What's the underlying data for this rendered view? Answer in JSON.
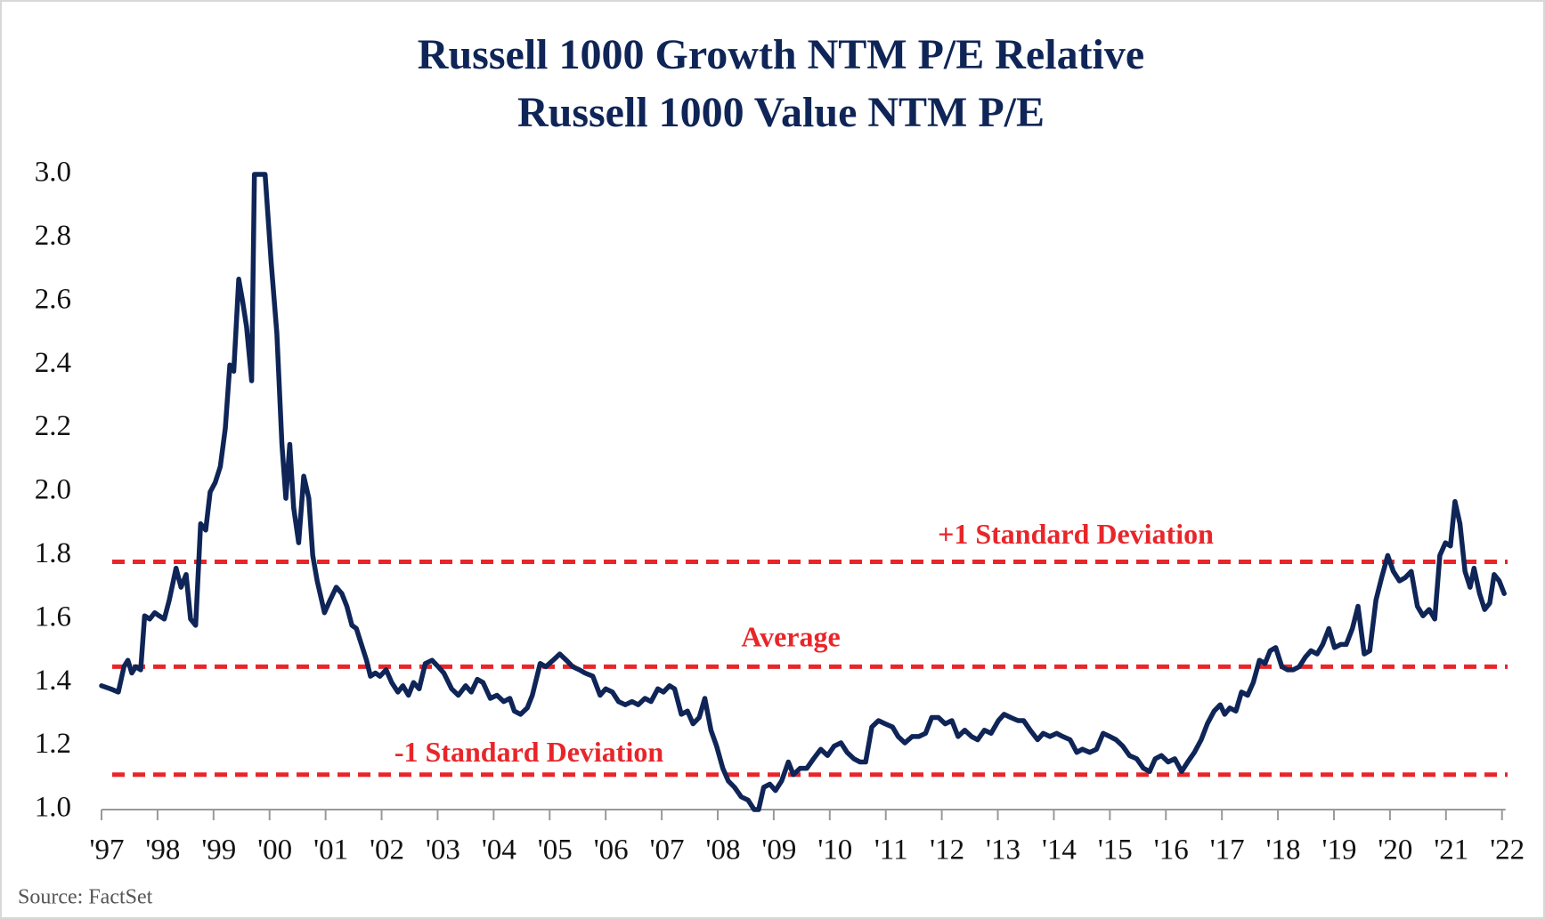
{
  "chart_data": {
    "type": "line",
    "title": [
      "Russell 1000 Growth NTM P/E Relative",
      "Russell 1000 Value NTM P/E"
    ],
    "source": "Source: FactSet",
    "xlim": [
      1997,
      2022.1
    ],
    "xticks": [
      {
        "value": 1997,
        "label": "'97"
      },
      {
        "value": 1998,
        "label": "'98"
      },
      {
        "value": 1999,
        "label": "'99"
      },
      {
        "value": 2000,
        "label": "'00"
      },
      {
        "value": 2001,
        "label": "'01"
      },
      {
        "value": 2002,
        "label": "'02"
      },
      {
        "value": 2003,
        "label": "'03"
      },
      {
        "value": 2004,
        "label": "'04"
      },
      {
        "value": 2005,
        "label": "'05"
      },
      {
        "value": 2006,
        "label": "'06"
      },
      {
        "value": 2007,
        "label": "'07"
      },
      {
        "value": 2008,
        "label": "'08"
      },
      {
        "value": 2009,
        "label": "'09"
      },
      {
        "value": 2010,
        "label": "'10"
      },
      {
        "value": 2011,
        "label": "'11"
      },
      {
        "value": 2012,
        "label": "'12"
      },
      {
        "value": 2013,
        "label": "'13"
      },
      {
        "value": 2014,
        "label": "'14"
      },
      {
        "value": 2015,
        "label": "'15"
      },
      {
        "value": 2016,
        "label": "'16"
      },
      {
        "value": 2017,
        "label": "'17"
      },
      {
        "value": 2018,
        "label": "'18"
      },
      {
        "value": 2019,
        "label": "'19"
      },
      {
        "value": 2020,
        "label": "'20"
      },
      {
        "value": 2021,
        "label": "'21"
      },
      {
        "value": 2022,
        "label": "'22"
      }
    ],
    "ylim": [
      1.0,
      3.0
    ],
    "yticks": [
      {
        "value": 1,
        "label": "1.0"
      },
      1.2,
      1.4,
      1.6,
      1.8,
      {
        "value": 2,
        "label": "2.0"
      },
      2.2,
      2.4,
      2.6,
      2.8,
      {
        "value": 3,
        "label": "3.0"
      }
    ],
    "reference_lines": [
      {
        "label": "+1 Standard Deviation",
        "value": 1.78,
        "color": "#e8262a"
      },
      {
        "label": "Average",
        "value": 1.45,
        "color": "#e8262a"
      },
      {
        "label": "-1 Standard Deviation",
        "value": 1.11,
        "color": "#e8262a"
      }
    ],
    "x": [
      1997.0,
      1997.16,
      1997.3,
      1997.4,
      1997.47,
      1997.54,
      1997.61,
      1997.7,
      1997.77,
      1997.86,
      1997.95,
      1998.03,
      1998.12,
      1998.21,
      1998.33,
      1998.42,
      1998.51,
      1998.59,
      1998.68,
      1998.77,
      1998.86,
      1998.94,
      1999.03,
      1999.12,
      1999.21,
      1999.29,
      1999.36,
      1999.45,
      1999.52,
      1999.59,
      1999.68,
      1999.73,
      1999.92,
      2000.03,
      2000.13,
      2000.22,
      2000.29,
      2000.36,
      2000.43,
      2000.52,
      2000.61,
      2000.7,
      2000.77,
      2000.85,
      2000.98,
      2001.08,
      2001.19,
      2001.29,
      2001.38,
      2001.47,
      2001.55,
      2001.64,
      2001.73,
      2001.8,
      2001.89,
      2001.97,
      2002.08,
      2002.18,
      2002.29,
      2002.38,
      2002.48,
      2002.57,
      2002.67,
      2002.78,
      2002.9,
      2003.01,
      2003.11,
      2003.25,
      2003.37,
      2003.5,
      2003.6,
      2003.71,
      2003.81,
      2003.94,
      2004.06,
      2004.18,
      2004.29,
      2004.37,
      2004.48,
      2004.6,
      2004.69,
      2004.83,
      2004.93,
      2005.06,
      2005.18,
      2005.3,
      2005.41,
      2005.53,
      2005.63,
      2005.77,
      2005.9,
      2006.0,
      2006.12,
      2006.23,
      2006.35,
      2006.47,
      2006.58,
      2006.7,
      2006.81,
      2006.93,
      2007.03,
      2007.14,
      2007.23,
      2007.35,
      2007.46,
      2007.56,
      2007.67,
      2007.77,
      2007.88,
      2007.98,
      2008.09,
      2008.19,
      2008.3,
      2008.42,
      2008.54,
      2008.65,
      2008.73,
      2008.82,
      2008.93,
      2009.03,
      2009.14,
      2009.26,
      2009.35,
      2009.47,
      2009.59,
      2009.71,
      2009.84,
      2009.96,
      2010.08,
      2010.2,
      2010.31,
      2010.43,
      2010.54,
      2010.64,
      2010.75,
      2010.87,
      2010.99,
      2011.12,
      2011.22,
      2011.34,
      2011.47,
      2011.59,
      2011.71,
      2011.82,
      2011.94,
      2012.06,
      2012.18,
      2012.29,
      2012.41,
      2012.53,
      2012.64,
      2012.76,
      2012.88,
      2013.01,
      2013.11,
      2013.23,
      2013.36,
      2013.46,
      2013.58,
      2013.71,
      2013.81,
      2013.93,
      2014.05,
      2014.16,
      2014.29,
      2014.41,
      2014.51,
      2014.64,
      2014.76,
      2014.88,
      2015.0,
      2015.11,
      2015.23,
      2015.35,
      2015.48,
      2015.6,
      2015.71,
      2015.81,
      2015.92,
      2016.04,
      2016.16,
      2016.28,
      2016.39,
      2016.51,
      2016.63,
      2016.74,
      2016.86,
      2016.97,
      2017.05,
      2017.14,
      2017.25,
      2017.35,
      2017.46,
      2017.56,
      2017.67,
      2017.77,
      2017.86,
      2017.96,
      2018.07,
      2018.17,
      2018.27,
      2018.38,
      2018.49,
      2018.59,
      2018.7,
      2018.8,
      2018.91,
      2019.01,
      2019.12,
      2019.22,
      2019.33,
      2019.43,
      2019.54,
      2019.64,
      2019.75,
      2019.85,
      2019.96,
      2020.06,
      2020.17,
      2020.27,
      2020.38,
      2020.49,
      2020.59,
      2020.7,
      2020.8,
      2020.89,
      2020.99,
      2021.08,
      2021.16,
      2021.25,
      2021.34,
      2021.43,
      2021.5,
      2021.6,
      2021.69,
      2021.78,
      2021.86,
      2021.95,
      2022.04
    ],
    "series": [
      {
        "color": "#0f2557",
        "values": [
          1.39,
          1.38,
          1.37,
          1.45,
          1.47,
          1.43,
          1.45,
          1.44,
          1.61,
          1.6,
          1.62,
          1.61,
          1.6,
          1.66,
          1.76,
          1.7,
          1.74,
          1.6,
          1.58,
          1.9,
          1.88,
          2.0,
          2.03,
          2.08,
          2.2,
          2.4,
          2.38,
          2.67,
          2.6,
          2.52,
          2.35,
          3.0,
          3.0,
          2.72,
          2.5,
          2.15,
          1.98,
          2.15,
          1.95,
          1.84,
          2.05,
          1.98,
          1.8,
          1.72,
          1.62,
          1.66,
          1.7,
          1.68,
          1.64,
          1.58,
          1.57,
          1.52,
          1.47,
          1.42,
          1.43,
          1.42,
          1.44,
          1.4,
          1.37,
          1.39,
          1.36,
          1.4,
          1.38,
          1.46,
          1.47,
          1.45,
          1.43,
          1.38,
          1.36,
          1.39,
          1.37,
          1.41,
          1.4,
          1.35,
          1.36,
          1.34,
          1.35,
          1.31,
          1.3,
          1.32,
          1.36,
          1.46,
          1.45,
          1.47,
          1.49,
          1.47,
          1.45,
          1.44,
          1.43,
          1.42,
          1.36,
          1.38,
          1.37,
          1.34,
          1.33,
          1.34,
          1.33,
          1.35,
          1.34,
          1.38,
          1.37,
          1.39,
          1.38,
          1.3,
          1.31,
          1.27,
          1.29,
          1.35,
          1.25,
          1.2,
          1.13,
          1.09,
          1.07,
          1.04,
          1.03,
          1.0,
          1.0,
          1.07,
          1.08,
          1.06,
          1.09,
          1.15,
          1.11,
          1.13,
          1.13,
          1.16,
          1.19,
          1.17,
          1.2,
          1.21,
          1.18,
          1.16,
          1.15,
          1.15,
          1.26,
          1.28,
          1.27,
          1.26,
          1.23,
          1.21,
          1.23,
          1.23,
          1.24,
          1.29,
          1.29,
          1.27,
          1.28,
          1.23,
          1.25,
          1.23,
          1.22,
          1.25,
          1.24,
          1.28,
          1.3,
          1.29,
          1.28,
          1.28,
          1.25,
          1.22,
          1.24,
          1.23,
          1.24,
          1.23,
          1.22,
          1.18,
          1.19,
          1.18,
          1.19,
          1.24,
          1.23,
          1.22,
          1.2,
          1.17,
          1.16,
          1.13,
          1.12,
          1.16,
          1.17,
          1.15,
          1.16,
          1.12,
          1.15,
          1.18,
          1.22,
          1.27,
          1.31,
          1.33,
          1.3,
          1.32,
          1.31,
          1.37,
          1.36,
          1.4,
          1.47,
          1.46,
          1.5,
          1.51,
          1.45,
          1.44,
          1.44,
          1.45,
          1.48,
          1.5,
          1.49,
          1.52,
          1.57,
          1.51,
          1.52,
          1.52,
          1.57,
          1.64,
          1.49,
          1.5,
          1.66,
          1.73,
          1.8,
          1.75,
          1.72,
          1.73,
          1.75,
          1.64,
          1.61,
          1.63,
          1.6,
          1.8,
          1.84,
          1.83,
          1.97,
          1.9,
          1.75,
          1.7,
          1.76,
          1.68,
          1.63,
          1.65,
          1.74,
          1.72,
          1.68
        ]
      }
    ]
  }
}
